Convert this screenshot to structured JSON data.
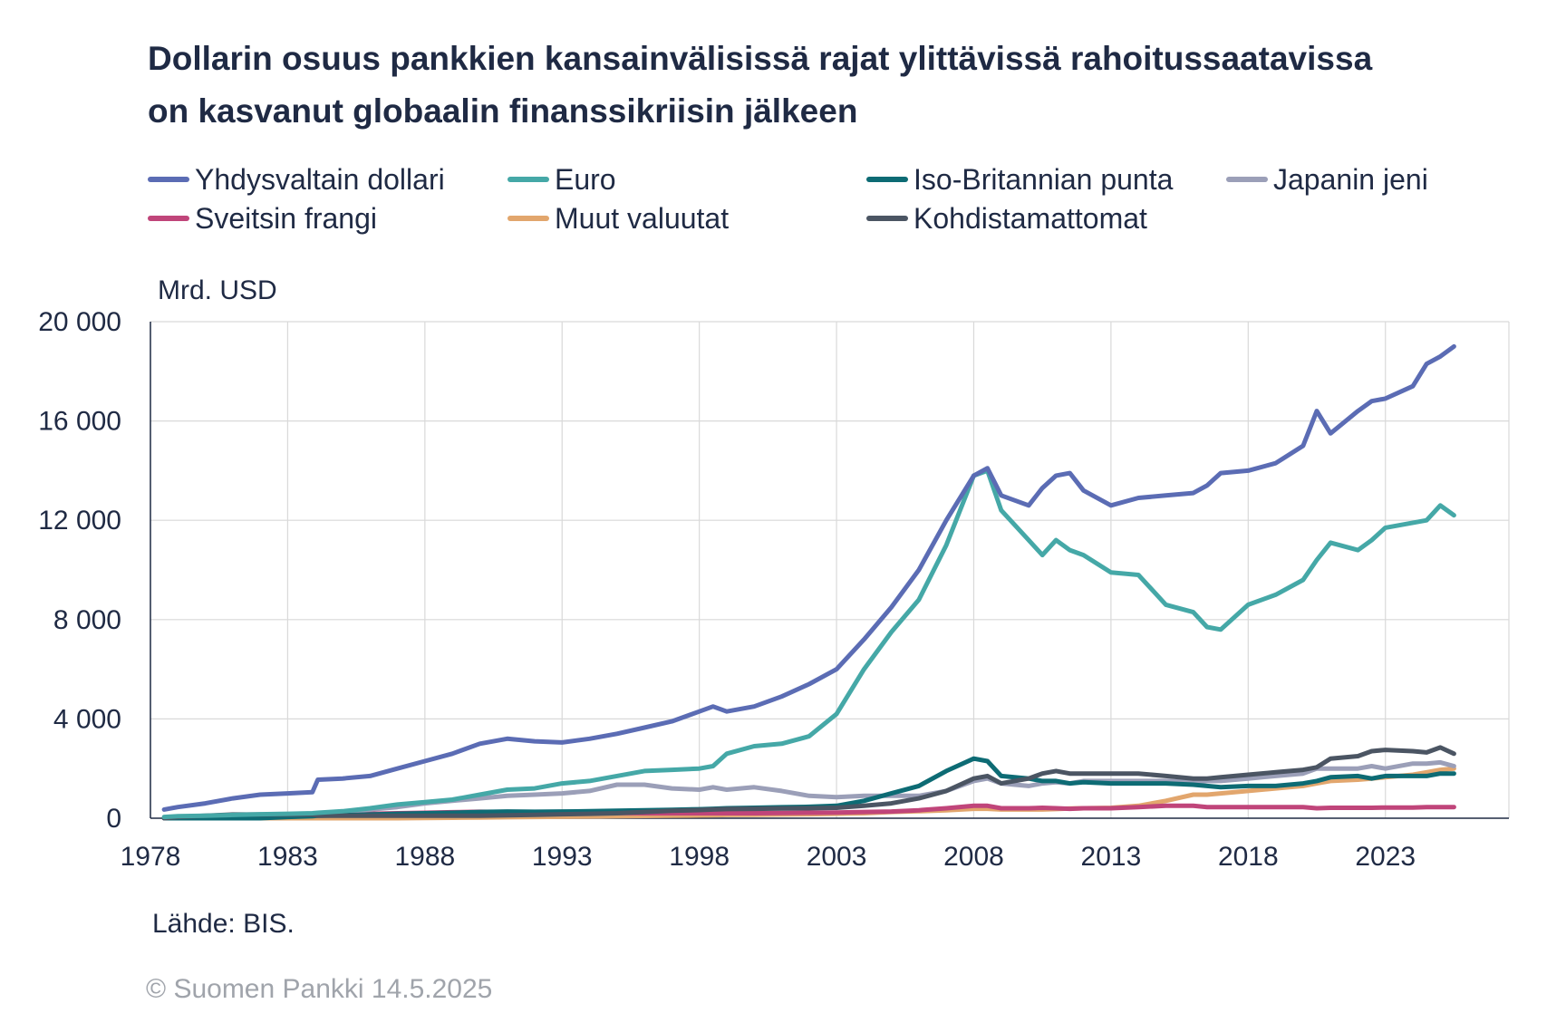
{
  "header": {
    "title_line1": "Dollarin osuus pankkien kansainvälisissä rajat ylittävissä rahoitussaatavissa",
    "title_line2": "on kasvanut globaalin finanssikriisin jälkeen"
  },
  "footer": {
    "source": "Lähde: BIS.",
    "copyright": "© Suomen Pankki 14.5.2025"
  },
  "chart_data": {
    "type": "line",
    "ylabel": "Mrd. USD",
    "xlim": [
      1978,
      2027.5
    ],
    "ylim": [
      0,
      20000
    ],
    "x_ticks": [
      1978,
      1983,
      1988,
      1993,
      1998,
      2003,
      2008,
      2013,
      2018,
      2023
    ],
    "x_tick_labels": [
      "1978",
      "1983",
      "1988",
      "1993",
      "1998",
      "2003",
      "2008",
      "2013",
      "2018",
      "2023"
    ],
    "y_ticks": [
      0,
      4000,
      8000,
      12000,
      16000,
      20000
    ],
    "y_tick_labels": [
      "0",
      "4 000",
      "8 000",
      "12 000",
      "16 000",
      "20 000"
    ],
    "grid": true,
    "legend_position": "top",
    "x": [
      1978.5,
      1979,
      1980,
      1981,
      1982,
      1983,
      1983.9,
      1984.1,
      1985,
      1986,
      1987,
      1988,
      1989,
      1990,
      1991,
      1992,
      1993,
      1994,
      1995,
      1996,
      1997,
      1998,
      1998.5,
      1999,
      2000,
      2001,
      2002,
      2003,
      2004,
      2005,
      2006,
      2007,
      2008,
      2008.5,
      2009,
      2010,
      2010.5,
      2011,
      2011.5,
      2012,
      2013,
      2014,
      2015,
      2016,
      2016.5,
      2017,
      2018,
      2019,
      2020,
      2020.5,
      2021,
      2022,
      2022.5,
      2023,
      2024,
      2024.5,
      2025,
      2025.5
    ],
    "series": [
      {
        "name": "Yhdysvaltain dollari",
        "color": "#5b6cb4",
        "values": [
          350,
          450,
          600,
          800,
          950,
          1000,
          1050,
          1550,
          1600,
          1700,
          2000,
          2300,
          2600,
          3000,
          3200,
          3100,
          3050,
          3200,
          3400,
          3650,
          3900,
          4300,
          4500,
          4300,
          4500,
          4900,
          5400,
          6000,
          7200,
          8500,
          10000,
          12000,
          13800,
          14100,
          13000,
          12600,
          13300,
          13800,
          13900,
          13200,
          12600,
          12900,
          13000,
          13100,
          13400,
          13900,
          14000,
          14300,
          15000,
          16400,
          15500,
          16400,
          16800,
          16900,
          17400,
          18300,
          18600,
          19000
        ]
      },
      {
        "name": "Euro",
        "color": "#45a8a7",
        "values": [
          50,
          80,
          100,
          130,
          160,
          180,
          200,
          220,
          280,
          400,
          550,
          650,
          750,
          950,
          1150,
          1200,
          1400,
          1500,
          1700,
          1900,
          1950,
          2000,
          2100,
          2600,
          2900,
          3000,
          3300,
          4200,
          6000,
          7500,
          8800,
          11000,
          13800,
          14000,
          12400,
          11200,
          10600,
          11200,
          10800,
          10600,
          9900,
          9800,
          8600,
          8300,
          7700,
          7600,
          8600,
          9000,
          9600,
          10400,
          11100,
          10800,
          11200,
          11700,
          11900,
          12000,
          12600,
          12200
        ]
      },
      {
        "name": "Iso-Britannian punta",
        "color": "#0d6b74",
        "values": [
          0,
          0,
          0,
          0,
          0,
          50,
          80,
          100,
          120,
          150,
          180,
          200,
          220,
          250,
          270,
          260,
          270,
          280,
          300,
          320,
          340,
          360,
          380,
          400,
          420,
          440,
          460,
          500,
          700,
          1000,
          1300,
          1900,
          2400,
          2300,
          1700,
          1600,
          1500,
          1500,
          1400,
          1450,
          1400,
          1400,
          1400,
          1350,
          1300,
          1250,
          1300,
          1300,
          1400,
          1500,
          1650,
          1700,
          1600,
          1700,
          1700,
          1700,
          1800,
          1800
        ]
      },
      {
        "name": "Japanin jeni",
        "color": "#9b9fb8",
        "values": [
          0,
          0,
          20,
          40,
          60,
          100,
          150,
          200,
          250,
          350,
          450,
          600,
          700,
          800,
          900,
          950,
          1000,
          1100,
          1350,
          1350,
          1200,
          1150,
          1250,
          1150,
          1250,
          1100,
          900,
          850,
          900,
          900,
          900,
          1100,
          1500,
          1600,
          1400,
          1300,
          1400,
          1450,
          1400,
          1500,
          1500,
          1500,
          1500,
          1450,
          1500,
          1500,
          1600,
          1700,
          1800,
          2000,
          2000,
          2000,
          2100,
          2000,
          2200,
          2200,
          2250,
          2100
        ]
      },
      {
        "name": "Sveitsin frangi",
        "color": "#c0457a",
        "values": [
          0,
          0,
          20,
          40,
          60,
          80,
          100,
          120,
          150,
          180,
          200,
          220,
          240,
          260,
          250,
          240,
          230,
          220,
          210,
          200,
          200,
          200,
          200,
          200,
          200,
          210,
          220,
          230,
          250,
          270,
          320,
          400,
          500,
          500,
          400,
          400,
          420,
          400,
          380,
          400,
          400,
          450,
          500,
          500,
          450,
          450,
          450,
          450,
          450,
          400,
          420,
          420,
          420,
          430,
          430,
          450,
          450,
          450
        ]
      },
      {
        "name": "Muut valuutat",
        "color": "#e2a66d",
        "values": [
          0,
          0,
          0,
          0,
          0,
          0,
          0,
          0,
          0,
          0,
          0,
          10,
          20,
          30,
          40,
          50,
          60,
          70,
          80,
          90,
          100,
          110,
          120,
          130,
          140,
          150,
          160,
          180,
          200,
          250,
          280,
          320,
          380,
          380,
          350,
          350,
          350,
          370,
          390,
          400,
          420,
          500,
          700,
          950,
          950,
          1000,
          1100,
          1200,
          1300,
          1400,
          1500,
          1550,
          1600,
          1650,
          1750,
          1850,
          1950,
          2000
        ]
      },
      {
        "name": "Kohdistamattomat",
        "color": "#4b5563",
        "values": [
          0,
          50,
          100,
          150,
          150,
          150,
          150,
          100,
          100,
          100,
          100,
          100,
          100,
          100,
          120,
          140,
          160,
          180,
          200,
          250,
          300,
          330,
          350,
          370,
          380,
          390,
          400,
          420,
          500,
          600,
          800,
          1100,
          1600,
          1700,
          1400,
          1600,
          1800,
          1900,
          1800,
          1800,
          1800,
          1800,
          1700,
          1600,
          1600,
          1650,
          1750,
          1850,
          1950,
          2050,
          2400,
          2500,
          2700,
          2750,
          2700,
          2650,
          2850,
          2600
        ]
      }
    ]
  }
}
